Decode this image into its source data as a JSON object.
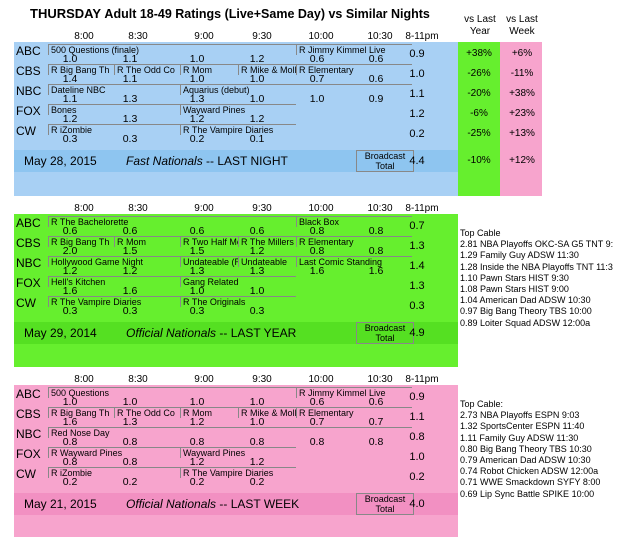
{
  "title": {
    "day": "THURSDAY",
    "rest": "Adult 18-49 Ratings (Live+Same Day) vs Similar Nights"
  },
  "vs_headers": {
    "last_year": "vs Last\nYear",
    "last_week": "vs Last\nWeek"
  },
  "times": [
    "8:00",
    "8:30",
    "9:00",
    "9:30",
    "10:00",
    "10:30",
    "8-11pm"
  ],
  "panel1": {
    "rows": [
      {
        "net": "ABC",
        "progs": [
          {
            "t": "500 Questions (finale)",
            "c": 0,
            "w": 4
          },
          {
            "t": "R Jimmy Kimmel Live",
            "c": 4,
            "w": 2
          }
        ],
        "vals": [
          "1.0",
          "1.1",
          "1.0",
          "1.2",
          "0.6",
          "0.6"
        ],
        "total": "0.9",
        "vs_year": "+38%",
        "vs_week": "+6%"
      },
      {
        "net": "CBS",
        "progs": [
          {
            "t": "R Big Bang Th",
            "c": 0,
            "w": 1
          },
          {
            "t": "R The Odd Co",
            "c": 1,
            "w": 1
          },
          {
            "t": "R Mom",
            "c": 2,
            "w": 1
          },
          {
            "t": "R Mike & Molly",
            "c": 3,
            "w": 1
          },
          {
            "t": "R Elementary",
            "c": 4,
            "w": 2
          }
        ],
        "vals": [
          "1.4",
          "1.1",
          "1.0",
          "1.0",
          "0.7",
          "0.6"
        ],
        "total": "1.0",
        "vs_year": "-26%",
        "vs_week": "-11%"
      },
      {
        "net": "NBC",
        "progs": [
          {
            "t": "Dateline NBC",
            "c": 0,
            "w": 2
          },
          {
            "t": "Aquarius (debut)",
            "c": 2,
            "w": 4
          }
        ],
        "vals": [
          "1.1",
          "1.3",
          "1.3",
          "1.0",
          "1.0",
          "0.9"
        ],
        "total": "1.1",
        "vs_year": "-20%",
        "vs_week": "+38%"
      },
      {
        "net": "FOX",
        "progs": [
          {
            "t": "Bones",
            "c": 0,
            "w": 2
          },
          {
            "t": "Wayward Pines",
            "c": 2,
            "w": 2
          }
        ],
        "vals": [
          "1.2",
          "1.3",
          "1.2",
          "1.2",
          "",
          ""
        ],
        "total": "1.2",
        "vs_year": "-6%",
        "vs_week": "+23%"
      },
      {
        "net": "CW",
        "progs": [
          {
            "t": "R iZombie",
            "c": 0,
            "w": 2
          },
          {
            "t": "R The Vampire Diaries",
            "c": 2,
            "w": 2
          }
        ],
        "vals": [
          "0.3",
          "0.3",
          "0.2",
          "0.1",
          "",
          ""
        ],
        "total": "0.2",
        "vs_year": "-25%",
        "vs_week": "+13%"
      }
    ],
    "footer": {
      "date": "May 28, 2015",
      "desc_i": "Fast Nationals",
      "desc": "-- LAST NIGHT",
      "bt1": "Broadcast",
      "bt2": "Total",
      "total": "4.4",
      "vs_year": "-10%",
      "vs_week": "+12%"
    }
  },
  "panel2": {
    "rows": [
      {
        "net": "ABC",
        "progs": [
          {
            "t": "R The Bachelorette",
            "c": 0,
            "w": 4
          },
          {
            "t": "Black Box",
            "c": 4,
            "w": 2
          }
        ],
        "vals": [
          "0.6",
          "0.6",
          "0.6",
          "0.6",
          "0.8",
          "0.8"
        ],
        "total": "0.7"
      },
      {
        "net": "CBS",
        "progs": [
          {
            "t": "R Big Bang Th",
            "c": 0,
            "w": 1
          },
          {
            "t": "R Mom",
            "c": 1,
            "w": 1
          },
          {
            "t": "R Two Half Me",
            "c": 2,
            "w": 1
          },
          {
            "t": "R The Millers",
            "c": 3,
            "w": 1
          },
          {
            "t": "R Elementary",
            "c": 4,
            "w": 2
          }
        ],
        "vals": [
          "2.0",
          "1.5",
          "1.5",
          "1.2",
          "0.8",
          "0.8"
        ],
        "total": "1.3"
      },
      {
        "net": "NBC",
        "progs": [
          {
            "t": "Hollywood Game Night",
            "c": 0,
            "w": 2
          },
          {
            "t": "Undateable (R",
            "c": 2,
            "w": 1
          },
          {
            "t": "Undateable",
            "c": 3,
            "w": 1
          },
          {
            "t": "Last Comic Standing",
            "c": 4,
            "w": 2
          }
        ],
        "vals": [
          "1.2",
          "1.2",
          "1.3",
          "1.3",
          "1.6",
          "1.6"
        ],
        "total": "1.4"
      },
      {
        "net": "FOX",
        "progs": [
          {
            "t": "Hell's Kitchen",
            "c": 0,
            "w": 2
          },
          {
            "t": "Gang Related",
            "c": 2,
            "w": 2
          }
        ],
        "vals": [
          "1.6",
          "1.6",
          "1.0",
          "1.0",
          "",
          ""
        ],
        "total": "1.3"
      },
      {
        "net": "CW",
        "progs": [
          {
            "t": "R The Vampire Diaries",
            "c": 0,
            "w": 2
          },
          {
            "t": "R The Originals",
            "c": 2,
            "w": 2
          }
        ],
        "vals": [
          "0.3",
          "0.3",
          "0.3",
          "0.3",
          "",
          ""
        ],
        "total": "0.3"
      }
    ],
    "footer": {
      "date": "May 29, 2014",
      "desc_i": "Official Nationals",
      "desc": "-- LAST YEAR",
      "bt1": "Broadcast",
      "bt2": "Total",
      "total": "4.9"
    },
    "side": [
      "Top Cable",
      "2.81 NBA Playoffs OKC-SA G5 TNT 9:",
      "1.29 Family Guy ADSW 11:30",
      "1.28 Inside the NBA Playoffs TNT 11:3",
      "1.10 Pawn Stars HIST 9:30",
      "1.08 Pawn Stars HIST 9:00",
      "1.04 American Dad ADSW 10:30",
      "0.97 Big Bang Theory TBS 10:00",
      "0.89 Loiter Squad ADSW 12:00a"
    ]
  },
  "panel3": {
    "rows": [
      {
        "net": "ABC",
        "progs": [
          {
            "t": "500 Questions",
            "c": 0,
            "w": 4
          },
          {
            "t": "R Jimmy Kimmel Live",
            "c": 4,
            "w": 2
          }
        ],
        "vals": [
          "1.0",
          "1.0",
          "1.0",
          "1.0",
          "0.6",
          "0.6"
        ],
        "total": "0.9"
      },
      {
        "net": "CBS",
        "progs": [
          {
            "t": "R Big Bang Th",
            "c": 0,
            "w": 1
          },
          {
            "t": "R The Odd Co",
            "c": 1,
            "w": 1
          },
          {
            "t": "R Mom",
            "c": 2,
            "w": 1
          },
          {
            "t": "R Mike & Molly",
            "c": 3,
            "w": 1
          },
          {
            "t": "R Elementary",
            "c": 4,
            "w": 2
          }
        ],
        "vals": [
          "1.6",
          "1.3",
          "1.2",
          "1.0",
          "0.7",
          "0.7"
        ],
        "total": "1.1"
      },
      {
        "net": "NBC",
        "progs": [
          {
            "t": "Red Nose Day",
            "c": 0,
            "w": 6
          }
        ],
        "vals": [
          "0.8",
          "0.8",
          "0.8",
          "0.8",
          "0.8",
          "0.8"
        ],
        "total": "0.8"
      },
      {
        "net": "FOX",
        "progs": [
          {
            "t": "R Wayward Pines",
            "c": 0,
            "w": 2
          },
          {
            "t": "Wayward Pines",
            "c": 2,
            "w": 2
          }
        ],
        "vals": [
          "0.8",
          "0.8",
          "1.2",
          "1.2",
          "",
          ""
        ],
        "total": "1.0"
      },
      {
        "net": "CW",
        "progs": [
          {
            "t": "R iZombie",
            "c": 0,
            "w": 2
          },
          {
            "t": "R The Vampire Diaries",
            "c": 2,
            "w": 2
          }
        ],
        "vals": [
          "0.2",
          "0.2",
          "0.2",
          "0.2",
          "",
          ""
        ],
        "total": "0.2"
      }
    ],
    "footer": {
      "date": "May 21, 2015",
      "desc_i": "Official Nationals",
      "desc": "-- LAST WEEK",
      "bt1": "Broadcast",
      "bt2": "Total",
      "total": "4.0"
    },
    "side": [
      "Top Cable:",
      "2.73 NBA Playoffs ESPN 9:03",
      "1.32 SportsCenter ESPN 11:40",
      "1.11 Family Guy ADSW 11:30",
      "0.80 Big Bang Theory TBS 10:30",
      "0.79 American Dad ADSW 10:30",
      "0.74 Robot Chicken ADSW 12:00a",
      "0.71 WWE Smackdown SYFY 8:00",
      "0.69 Lip Sync Battle SPIKE 10:00"
    ]
  }
}
